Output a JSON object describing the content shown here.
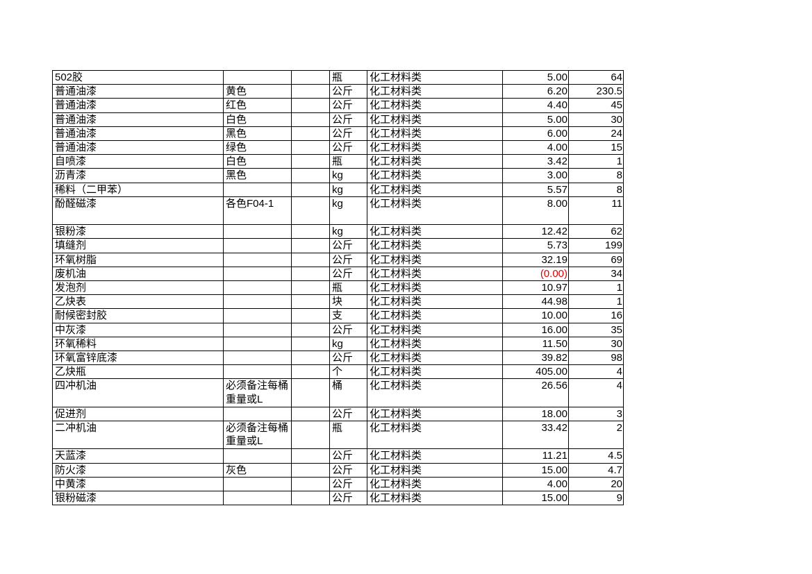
{
  "colors": {
    "negative": "#e00000"
  },
  "rows": [
    [
      "502胶",
      "",
      "",
      "瓶",
      "化工材料类",
      "5.00",
      "64"
    ],
    [
      "普通油漆",
      "黄色",
      "",
      "公斤",
      "化工材料类",
      "6.20",
      "230.5"
    ],
    [
      "普通油漆",
      "红色",
      "",
      "公斤",
      "化工材料类",
      "4.40",
      "45"
    ],
    [
      "普通油漆",
      "白色",
      "",
      "公斤",
      "化工材料类",
      "5.00",
      "30"
    ],
    [
      "普通油漆",
      "黑色",
      "",
      "公斤",
      "化工材料类",
      "6.00",
      "24"
    ],
    [
      "普通油漆",
      "绿色",
      "",
      "公斤",
      "化工材料类",
      "4.00",
      "15"
    ],
    [
      "自喷漆",
      "白色",
      "",
      "瓶",
      "化工材料类",
      "3.42",
      "1"
    ],
    [
      "沥青漆",
      "黑色",
      "",
      "kg",
      "化工材料类",
      "3.00",
      "8"
    ],
    [
      "稀料（二甲苯）",
      "",
      "",
      "kg",
      "化工材料类",
      "5.57",
      "8"
    ],
    [
      "酚醛磁漆",
      "各色F04-1",
      "",
      "kg",
      "化工材料类",
      "8.00",
      "11"
    ],
    [
      "银粉漆",
      "",
      "",
      "kg",
      "化工材料类",
      "12.42",
      "62"
    ],
    [
      "填缝剂",
      "",
      "",
      "公斤",
      "化工材料类",
      "5.73",
      "199"
    ],
    [
      "环氧树脂",
      "",
      "",
      "公斤",
      "化工材料类",
      "32.19",
      "69"
    ],
    [
      "废机油",
      "",
      "",
      "公斤",
      "化工材料类",
      "(0.00)",
      "34"
    ],
    [
      "发泡剂",
      "",
      "",
      "瓶",
      "化工材料类",
      "10.97",
      "1"
    ],
    [
      "乙炔表",
      "",
      "",
      "块",
      "化工材料类",
      "44.98",
      "1"
    ],
    [
      "耐候密封胶",
      "",
      "",
      "支",
      "化工材料类",
      "10.00",
      "16"
    ],
    [
      "中灰漆",
      "",
      "",
      "公斤",
      "化工材料类",
      "16.00",
      "35"
    ],
    [
      "环氧稀料",
      "",
      "",
      "kg",
      "化工材料类",
      "11.50",
      "30"
    ],
    [
      "环氧富锌底漆",
      "",
      "",
      "公斤",
      "化工材料类",
      "39.82",
      "98"
    ],
    [
      "乙炔瓶",
      "",
      "",
      "个",
      "化工材料类",
      "405.00",
      "4"
    ],
    [
      "四冲机油",
      "必须备注每桶重量或L",
      "",
      "桶",
      "化工材料类",
      "26.56",
      "4"
    ],
    [
      "促进剂",
      "",
      "",
      "公斤",
      "化工材料类",
      "18.00",
      "3"
    ],
    [
      "二冲机油",
      "必须备注每桶重量或L",
      "",
      "瓶",
      "化工材料类",
      "33.42",
      "2"
    ],
    [
      "天蓝漆",
      "",
      "",
      "公斤",
      "化工材料类",
      "11.21",
      "4.5"
    ],
    [
      "防火漆",
      "灰色",
      "",
      "公斤",
      "化工材料类",
      "15.00",
      "4.7"
    ],
    [
      "中黄漆",
      "",
      "",
      "公斤",
      "化工材料类",
      "4.00",
      "20"
    ],
    [
      "银粉磁漆",
      "",
      "",
      "公斤",
      "化工材料类",
      "15.00",
      "9"
    ]
  ]
}
